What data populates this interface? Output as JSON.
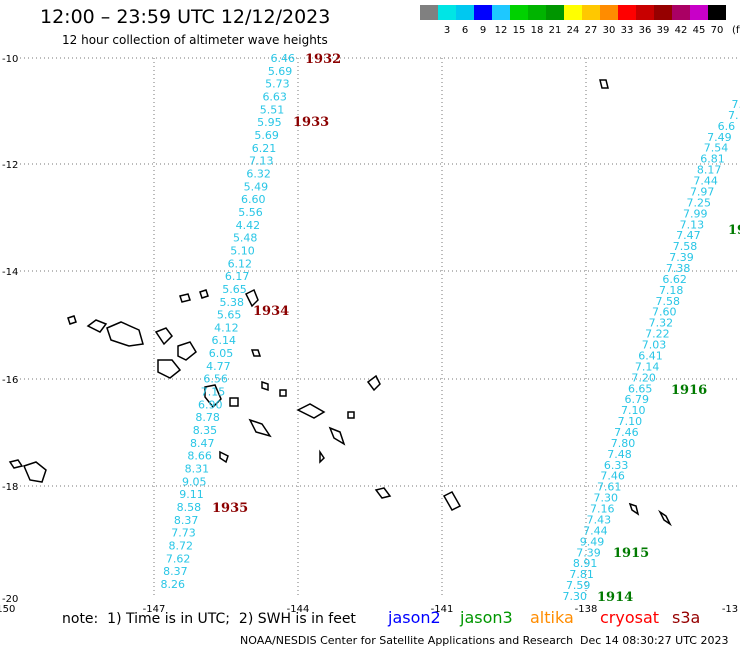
{
  "header": {
    "title": "12:00 – 23:59 UTC 12/12/2023",
    "subtitle": "12 hour collection of altimeter wave heights"
  },
  "legend": {
    "unit": "(ft)",
    "bins": [
      {
        "label": "",
        "color": "#808080"
      },
      {
        "label": "3",
        "color": "#00e5e5"
      },
      {
        "label": "6",
        "color": "#00c8f0"
      },
      {
        "label": "9",
        "color": "#0000ff"
      },
      {
        "label": "12",
        "color": "#1ec8ff"
      },
      {
        "label": "15",
        "color": "#00d200"
      },
      {
        "label": "18",
        "color": "#00b400"
      },
      {
        "label": "21",
        "color": "#009600"
      },
      {
        "label": "24",
        "color": "#ffff00"
      },
      {
        "label": "27",
        "color": "#ffc800"
      },
      {
        "label": "30",
        "color": "#ff8c00"
      },
      {
        "label": "33",
        "color": "#ff0000"
      },
      {
        "label": "36",
        "color": "#c80000"
      },
      {
        "label": "39",
        "color": "#960000"
      },
      {
        "label": "42",
        "color": "#aa0064"
      },
      {
        "label": "45",
        "color": "#c800c8"
      },
      {
        "label": "70",
        "color": "#000000"
      }
    ]
  },
  "axes": {
    "lon_labels": [
      "-150",
      "-147",
      "-144",
      "-141",
      "-138",
      "-13"
    ],
    "lat_labels": [
      "-10",
      "-12",
      "-14",
      "-16",
      "-18",
      "-20"
    ]
  },
  "tracks": {
    "west": {
      "color": "#29c6e6",
      "values": [
        "6.46",
        "5.69",
        "5.73",
        "6.63",
        "5.51",
        "5.95",
        "5.69",
        "6.21",
        "7.13",
        "6.32",
        "5.49",
        "6.60",
        "5.56",
        "4.42",
        "5.48",
        "5.10",
        "6.12",
        "6.17",
        "5.65",
        "5.38",
        "5.65",
        "4.12",
        "6.14",
        "6.05",
        "4.77",
        "6.56",
        "7.15",
        "6.90",
        "8.78",
        "8.35",
        "8.47",
        "8.66",
        "8.31",
        "9.05",
        "9.11",
        "8.58",
        "8.37",
        "7.73",
        "8.72",
        "7.62",
        "8.37",
        "8.26"
      ]
    },
    "east": {
      "color": "#29c6e6",
      "values": [
        "7.",
        "7.",
        "6.6",
        "7.49",
        "7.54",
        "6.81",
        "8.17",
        "7.44",
        "7.97",
        "7.25",
        "7.99",
        "7.13",
        "7.47",
        "7.58",
        "7.39",
        "7.38",
        "6.62",
        "7.18",
        "7.58",
        "7.60",
        "7.32",
        "7.22",
        "7.03",
        "6.41",
        "7.14",
        "7.20",
        "6.65",
        "6.79",
        "7.10",
        "7.10",
        "7.46",
        "7.80",
        "7.48",
        "6.33",
        "7.46",
        "7.61",
        "7.30",
        "7.16",
        "7.43",
        "7.44",
        "9.49",
        "7.39",
        "8.91",
        "7.81",
        "7.59",
        "7.30"
      ]
    }
  },
  "hour_labels": {
    "west": [
      "1932",
      "1933",
      "1934",
      "1935"
    ],
    "east": [
      "19",
      "1916",
      "1915",
      "1914"
    ]
  },
  "footer": {
    "note": "note:  1) Time is in UTC;  2) SWH is in feet",
    "satellites": [
      {
        "name": "jason2",
        "color": "#0000ff"
      },
      {
        "name": "jason3",
        "color": "#009600"
      },
      {
        "name": "altika",
        "color": "#ff8c00"
      },
      {
        "name": "cryosat",
        "color": "#ff0000"
      },
      {
        "name": "s3a",
        "color": "#960000"
      }
    ],
    "credit": "NOAA/NESDIS Center for Satellite Applications and Research",
    "timestamp": "Dec 14 08:30:27 UTC 2023"
  }
}
